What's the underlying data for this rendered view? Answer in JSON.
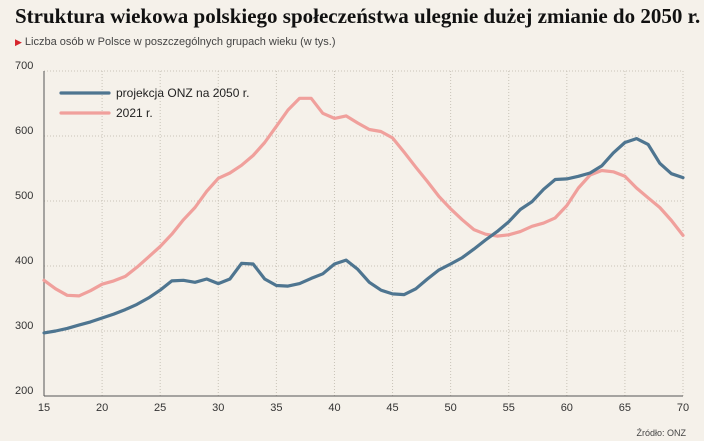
{
  "header": {
    "title": "Struktura wiekowa polskiego społeczeństwa ulegnie dużej zmianie do 2050 r.",
    "subtitle": "Liczba osób w Polsce w poszczególnych grupach wieku (w tys.)"
  },
  "source": "Źródło: ONZ",
  "colors": {
    "background": "#f5f1ea",
    "grid": "#c9c3b8",
    "marker": "#d6252c"
  },
  "chart_data": {
    "type": "line",
    "xlim": [
      15,
      70
    ],
    "ylim": [
      200,
      700
    ],
    "xticks": [
      15,
      20,
      25,
      30,
      35,
      40,
      45,
      50,
      55,
      60,
      65,
      70
    ],
    "yticks": [
      200,
      300,
      400,
      500,
      600,
      700
    ],
    "grid": "dotted",
    "legend_position": "top-left",
    "series": [
      {
        "name": "projekcja ONZ na 2050 r.",
        "color": "#4e7590",
        "x": [
          15,
          16,
          17,
          18,
          19,
          20,
          21,
          22,
          23,
          24,
          25,
          26,
          27,
          28,
          29,
          30,
          31,
          32,
          33,
          34,
          35,
          36,
          37,
          38,
          39,
          40,
          41,
          42,
          43,
          44,
          45,
          46,
          47,
          48,
          49,
          50,
          51,
          52,
          53,
          54,
          55,
          56,
          57,
          58,
          59,
          60,
          61,
          62,
          63,
          64,
          65,
          66,
          67,
          68,
          69,
          70
        ],
        "values": [
          297,
          300,
          304,
          309,
          314,
          320,
          326,
          333,
          341,
          351,
          363,
          377,
          378,
          375,
          380,
          373,
          380,
          404,
          403,
          380,
          370,
          369,
          373,
          381,
          388,
          403,
          409,
          395,
          375,
          363,
          357,
          356,
          365,
          380,
          394,
          403,
          413,
          426,
          440,
          453,
          468,
          487,
          499,
          518,
          533,
          534,
          538,
          543,
          554,
          574,
          590,
          596,
          587,
          558,
          542,
          536
        ]
      },
      {
        "name": "2021 r.",
        "color": "#f0a09c",
        "x": [
          15,
          16,
          17,
          18,
          19,
          20,
          21,
          22,
          23,
          24,
          25,
          26,
          27,
          28,
          29,
          30,
          31,
          32,
          33,
          34,
          35,
          36,
          37,
          38,
          39,
          40,
          41,
          42,
          43,
          44,
          45,
          46,
          47,
          48,
          49,
          50,
          51,
          52,
          53,
          54,
          55,
          56,
          57,
          58,
          59,
          60,
          61,
          62,
          63,
          64,
          65,
          66,
          67,
          68,
          69,
          70
        ],
        "values": [
          378,
          365,
          355,
          354,
          362,
          372,
          377,
          384,
          398,
          414,
          430,
          449,
          471,
          490,
          515,
          535,
          543,
          555,
          570,
          590,
          615,
          640,
          658,
          658,
          635,
          627,
          631,
          620,
          610,
          607,
          597,
          575,
          552,
          530,
          507,
          488,
          471,
          456,
          449,
          446,
          448,
          453,
          461,
          466,
          474,
          493,
          520,
          540,
          547,
          545,
          538,
          520,
          505,
          490,
          470,
          447
        ]
      }
    ]
  }
}
